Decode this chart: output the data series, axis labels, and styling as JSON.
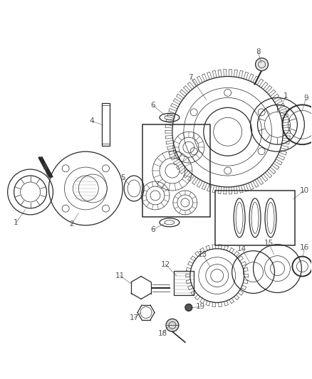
{
  "bg_color": "#ffffff",
  "line_color": "#2a2a2a",
  "label_color": "#555555",
  "fig_width": 4.38,
  "fig_height": 5.33,
  "dpi": 100
}
